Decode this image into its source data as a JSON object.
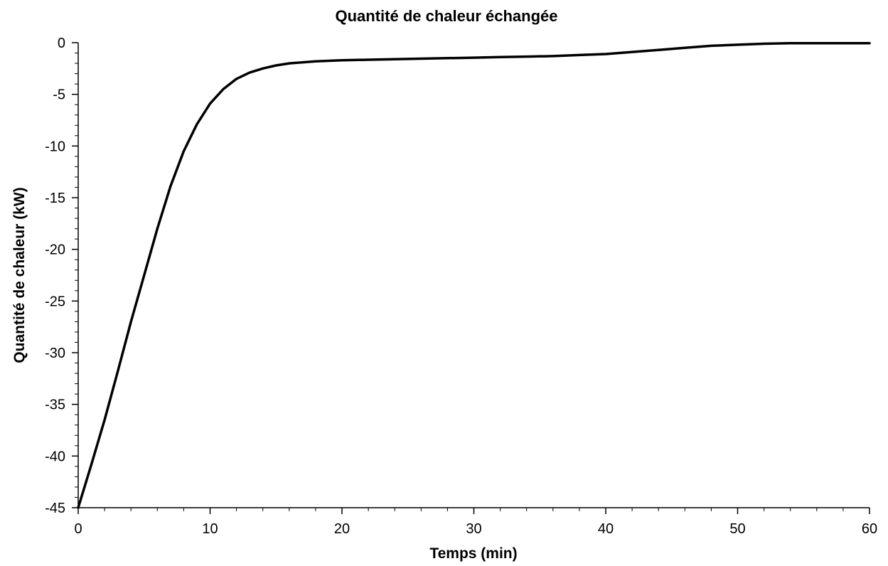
{
  "chart_data": {
    "type": "line",
    "title": "Quantité  de chaleur  échangée",
    "xlabel": "Temps (min)",
    "ylabel": "Quantité de chaleur (kW)",
    "xlim": [
      0,
      60
    ],
    "ylim": [
      -45,
      0
    ],
    "x_ticks": [
      "0",
      "10",
      "20",
      "30",
      "40",
      "50",
      "60"
    ],
    "y_ticks": [
      "0",
      "-5",
      "-10",
      "-15",
      "-20",
      "-25",
      "-30",
      "-35",
      "-40",
      "-45"
    ],
    "grid": false,
    "legend": "none",
    "line_color": "#000000",
    "series": [
      {
        "x": [
          0,
          1,
          2,
          3,
          4,
          5,
          6,
          7,
          8,
          9,
          10,
          11,
          12,
          13,
          14,
          15,
          16,
          18,
          20,
          22,
          24,
          26,
          28,
          30,
          32,
          34,
          36,
          38,
          40,
          42,
          44,
          46,
          48,
          50,
          52,
          54,
          56,
          58,
          60
        ],
        "values": [
          -45,
          -40.8,
          -36.5,
          -31.8,
          -27.0,
          -22.5,
          -18.0,
          -13.9,
          -10.5,
          -7.9,
          -5.9,
          -4.5,
          -3.5,
          -2.9,
          -2.5,
          -2.2,
          -2.0,
          -1.8,
          -1.7,
          -1.65,
          -1.6,
          -1.55,
          -1.5,
          -1.45,
          -1.4,
          -1.35,
          -1.3,
          -1.2,
          -1.1,
          -0.9,
          -0.7,
          -0.5,
          -0.3,
          -0.2,
          -0.1,
          -0.05,
          -0.05,
          -0.05,
          -0.05
        ]
      }
    ]
  }
}
